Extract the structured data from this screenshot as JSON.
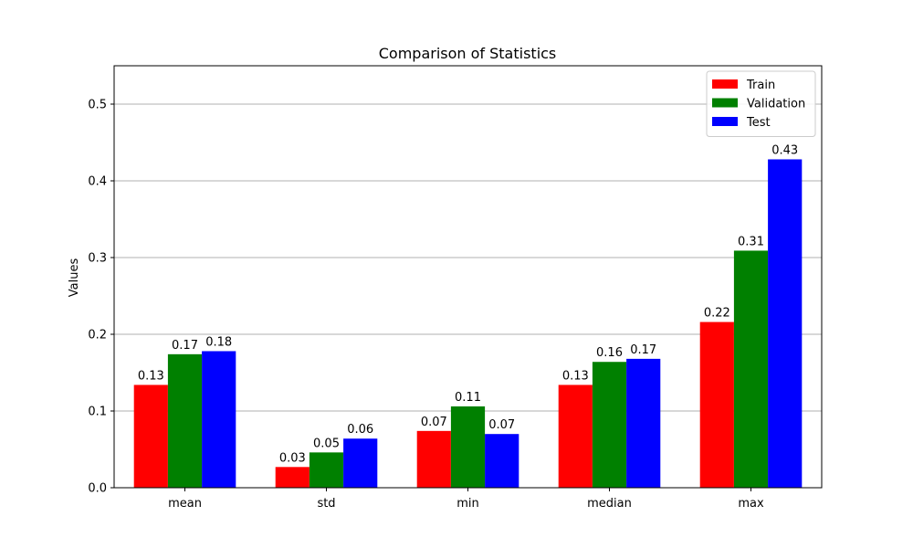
{
  "chart_data": {
    "type": "bar",
    "title": "Comparison of Statistics",
    "xlabel": "",
    "ylabel": "Values",
    "categories": [
      "mean",
      "std",
      "min",
      "median",
      "max"
    ],
    "series": [
      {
        "name": "Train",
        "color": "#ff0000",
        "values": [
          0.134,
          0.027,
          0.074,
          0.134,
          0.216
        ],
        "labels": [
          "0.13",
          "0.03",
          "0.07",
          "0.13",
          "0.22"
        ]
      },
      {
        "name": "Validation",
        "color": "#008000",
        "values": [
          0.174,
          0.046,
          0.106,
          0.164,
          0.309
        ],
        "labels": [
          "0.17",
          "0.05",
          "0.11",
          "0.16",
          "0.31"
        ]
      },
      {
        "name": "Test",
        "color": "#0000ff",
        "values": [
          0.178,
          0.064,
          0.07,
          0.168,
          0.428
        ],
        "labels": [
          "0.18",
          "0.06",
          "0.07",
          "0.17",
          "0.43"
        ]
      }
    ],
    "ylim": [
      0,
      0.55
    ],
    "yticks": [
      0.0,
      0.1,
      0.2,
      0.3,
      0.4,
      0.5
    ],
    "ytick_labels": [
      "0.0",
      "0.1",
      "0.2",
      "0.3",
      "0.4",
      "0.5"
    ],
    "grid": "y-major",
    "legend_position": "top-right"
  }
}
